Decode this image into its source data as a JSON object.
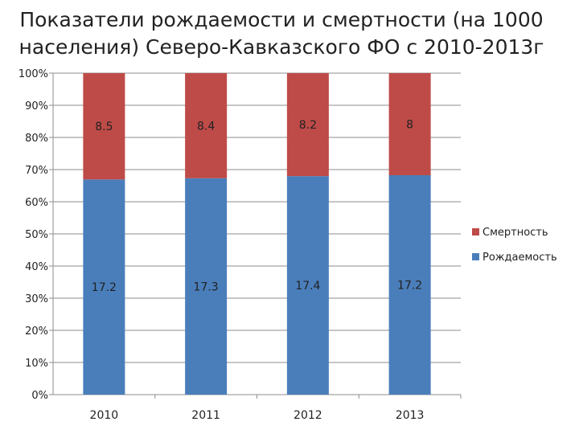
{
  "chart_data": {
    "type": "bar",
    "stacked": true,
    "percent_stacked": true,
    "title": "Показатели рождаемости и смертности  (на 1000 населения) Северо-Кавказского ФО с 2010-2013г",
    "categories": [
      "2010",
      "2011",
      "2012",
      "2013"
    ],
    "series": [
      {
        "name": "Рождаемость",
        "values": [
          17.2,
          17.3,
          17.4,
          17.2
        ],
        "labels": [
          "17.2",
          "17.3",
          "17.4",
          "17.2"
        ],
        "color": "#4a7ebb"
      },
      {
        "name": "Смертность",
        "values": [
          8.5,
          8.4,
          8.2,
          8
        ],
        "labels": [
          "8.5",
          "8.4",
          "8.2",
          "8"
        ],
        "color": "#be4b48"
      }
    ],
    "y_ticks": [
      "0%",
      "10%",
      "20%",
      "30%",
      "40%",
      "50%",
      "60%",
      "70%",
      "80%",
      "90%",
      "100%"
    ],
    "ylim": [
      0,
      100
    ],
    "grid": true,
    "legend_position": "right",
    "legend_order": [
      "Смертность",
      "Рождаемость"
    ]
  }
}
